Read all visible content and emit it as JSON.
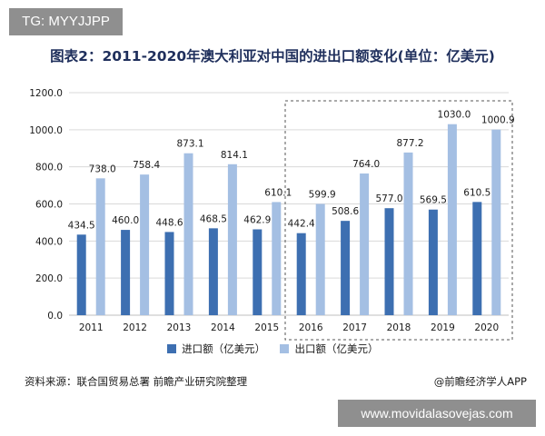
{
  "watermark_tag": "TG: MYYJJPP",
  "footer": {
    "source": "资料来源：联合国贸易总署 前瞻产业研究院整理",
    "brand": "@前瞻经济学人APP",
    "url": "www.movidalasovejas.com"
  },
  "colors": {
    "import": "#3d6fb1",
    "export": "#a4bfe3",
    "axis_text": "#1a1a1a",
    "grid": "#d9d9d9"
  },
  "chart_data": {
    "type": "bar",
    "title": "图表2：2011-2020年澳大利亚对中国的进出口额变化(单位：亿美元)",
    "categories": [
      "2011",
      "2012",
      "2013",
      "2014",
      "2015",
      "2016",
      "2017",
      "2018",
      "2019",
      "2020"
    ],
    "series": [
      {
        "name": "进口额（亿美元）",
        "values": [
          434.5,
          460.0,
          448.6,
          468.5,
          462.9,
          442.4,
          508.6,
          577.0,
          569.5,
          610.5
        ]
      },
      {
        "name": "出口额（亿美元）",
        "values": [
          738.0,
          758.4,
          873.1,
          814.1,
          610.1,
          599.9,
          764.0,
          877.2,
          1030.0,
          1000.9
        ]
      }
    ],
    "value_labels": {
      "import": [
        "434.5",
        "460.0",
        "448.6",
        "468.5",
        "462.9",
        "442.4",
        "508.6",
        "577.0",
        "569.5",
        "610.5"
      ],
      "export": [
        "738.0",
        "758.4",
        "873.1",
        "814.1",
        "610.1",
        "599.9",
        "764.0",
        "877.2",
        "1030.0",
        "1000.9"
      ]
    },
    "ylim": [
      0,
      1200
    ],
    "yticks": [
      "0.0",
      "200.0",
      "400.0",
      "600.0",
      "800.0",
      "1000.0",
      "1200.0"
    ],
    "xlabel": "",
    "ylabel": "",
    "grid": true,
    "legend_position": "bottom",
    "highlight_range": [
      "2016",
      "2020"
    ]
  }
}
